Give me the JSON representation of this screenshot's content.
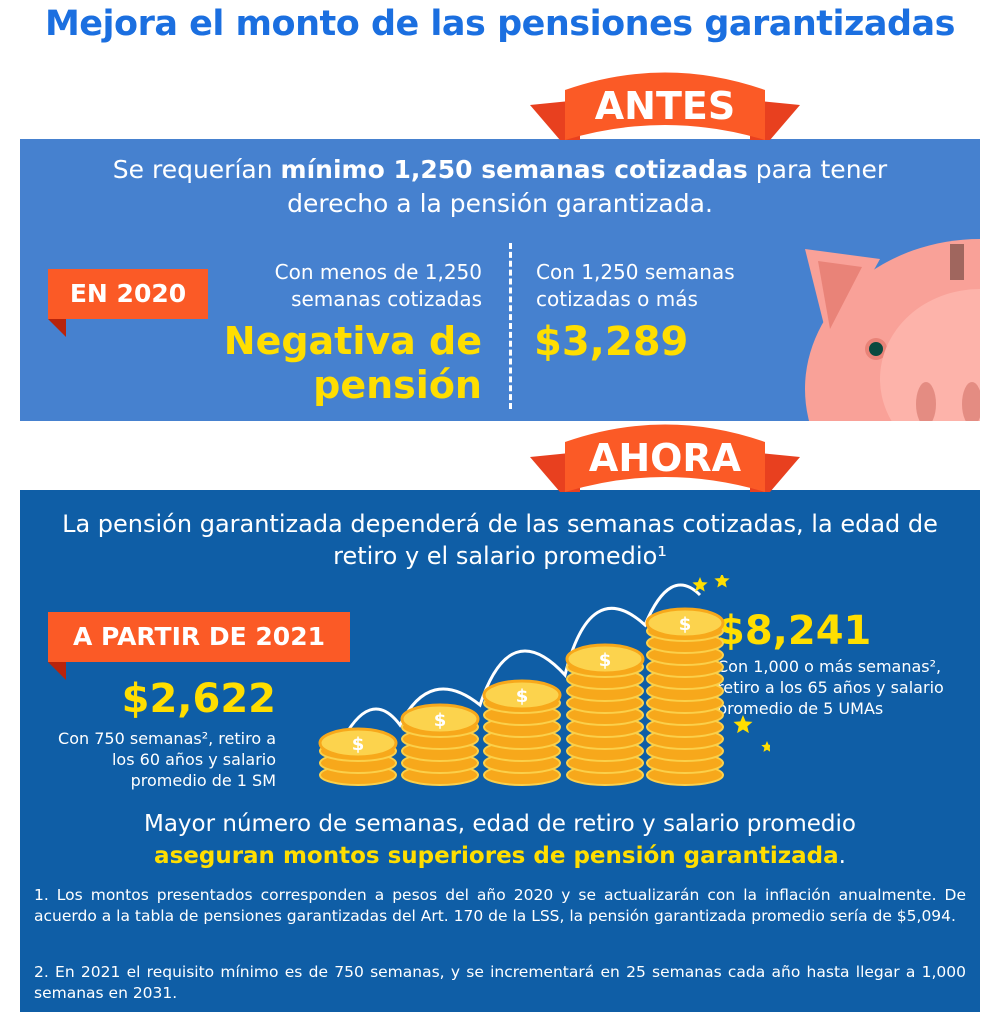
{
  "title": "Mejora el monto de las pensiones garantizadas",
  "antes": {
    "ribbon": "ANTES",
    "intro_pre": "Se requerían ",
    "intro_bold": "mínimo 1,250 semanas cotizadas",
    "intro_post": " para tener derecho a la pensión garantizada.",
    "tag": "EN 2020",
    "left_desc": "Con menos de 1,250 semanas cotizadas",
    "left_value": "Negativa de pensión",
    "right_desc": "Con 1,250 semanas cotizadas o más",
    "right_value": "$3,289"
  },
  "ahora": {
    "ribbon": "AHORA",
    "intro": "La pensión garantizada dependerá de las semanas cotizadas, la edad de retiro y el salario promedio¹",
    "tag": "A PARTIR DE 2021",
    "min_value": "$2,622",
    "min_desc": "Con 750 semanas², retiro a los 60 años y salario promedio de 1 SM",
    "max_value": "$8,241",
    "max_desc": "Con 1,000 o más semanas², retiro a los 65 años y salario promedio de 5 UMAs",
    "summary": "Mayor número de semanas, edad de retiro y salario promedio",
    "summary_bold": "aseguran montos superiores de pensión garantizada",
    "summary_end": ".",
    "footnote1": "1. Los montos presentados corresponden a pesos del año 2020 y se actualizarán con la inflación anualmente. De acuerdo a la tabla de pensiones garantizadas del Art. 170 de la LSS, la pensión garantizada promedio sería de $5,094.",
    "footnote2": "2. En 2021 el requisito mínimo es de 750 semanas, y se incrementará en 25 semanas cada año hasta llegar a 1,000 semanas en 2031."
  },
  "colors": {
    "orange": "#fb5a26",
    "yellow": "#ffde00",
    "blue_light": "#4681cf",
    "blue_dark": "#0f5ea6"
  }
}
